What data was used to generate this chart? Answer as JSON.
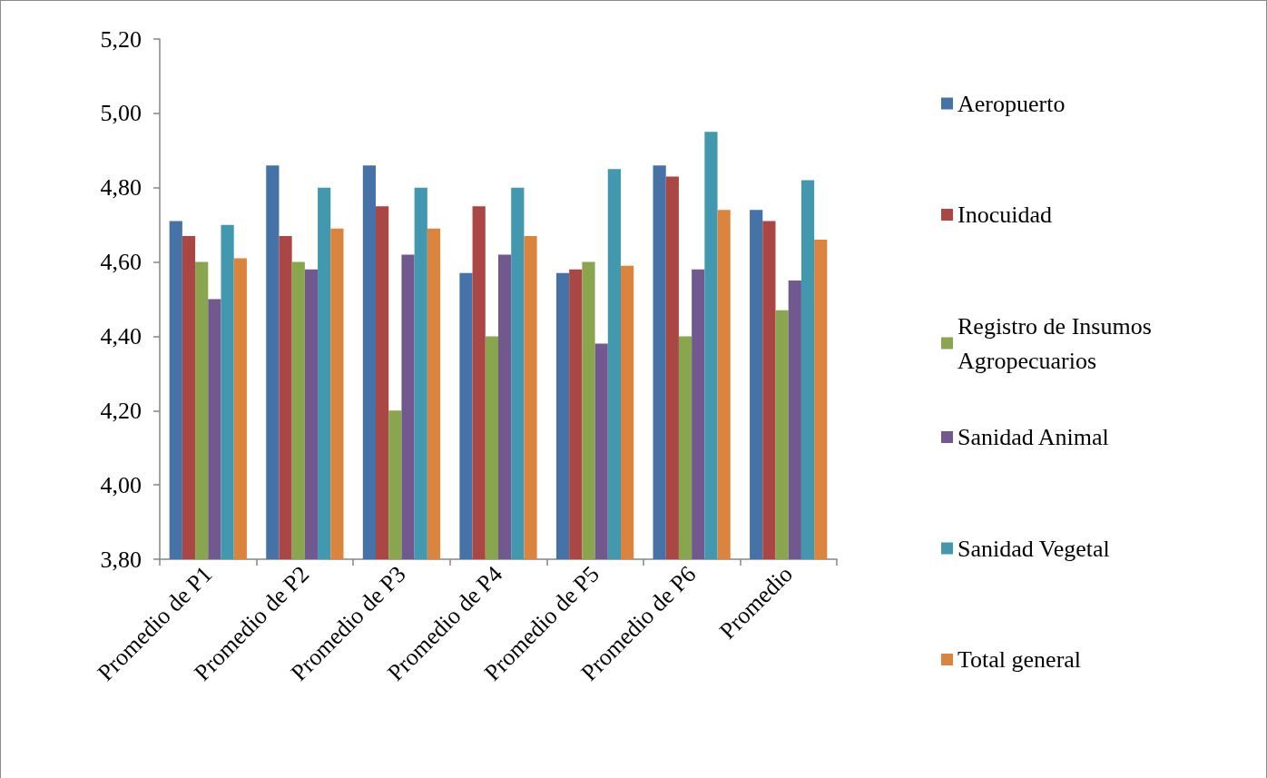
{
  "chart_data": {
    "type": "bar",
    "categories": [
      "Promedio de P1",
      "Promedio de P2",
      "Promedio de P3",
      "Promedio de P4",
      "Promedio de P5",
      "Promedio de P6",
      "Promedio"
    ],
    "series": [
      {
        "name": "Aeropuerto",
        "color": "#4572a7",
        "values": [
          4.71,
          4.86,
          4.86,
          4.57,
          4.57,
          4.86,
          4.74
        ]
      },
      {
        "name": "Inocuidad",
        "color": "#aa4643",
        "values": [
          4.67,
          4.67,
          4.75,
          4.75,
          4.58,
          4.83,
          4.71
        ]
      },
      {
        "name": "Registro de Insumos Agropecuarios",
        "color": "#89a54e",
        "values": [
          4.6,
          4.6,
          4.2,
          4.4,
          4.6,
          4.4,
          4.47
        ]
      },
      {
        "name": "Sanidad Animal",
        "color": "#71588f",
        "values": [
          4.5,
          4.58,
          4.62,
          4.62,
          4.38,
          4.58,
          4.55
        ]
      },
      {
        "name": "Sanidad Vegetal",
        "color": "#4198af",
        "values": [
          4.7,
          4.8,
          4.8,
          4.8,
          4.85,
          4.95,
          4.82
        ]
      },
      {
        "name": "Total general",
        "color": "#db843d",
        "values": [
          4.61,
          4.69,
          4.69,
          4.67,
          4.59,
          4.74,
          4.66
        ]
      }
    ],
    "ylim": [
      3.8,
      5.2
    ],
    "yticks": [
      {
        "value": 3.8,
        "label": "3,80"
      },
      {
        "value": 4.0,
        "label": "4,00"
      },
      {
        "value": 4.2,
        "label": "4,20"
      },
      {
        "value": 4.4,
        "label": "4,40"
      },
      {
        "value": 4.6,
        "label": "4,60"
      },
      {
        "value": 4.8,
        "label": "4,80"
      },
      {
        "value": 5.0,
        "label": "5,00"
      },
      {
        "value": 5.2,
        "label": "5,20"
      }
    ],
    "grid": false,
    "legend": "right"
  }
}
